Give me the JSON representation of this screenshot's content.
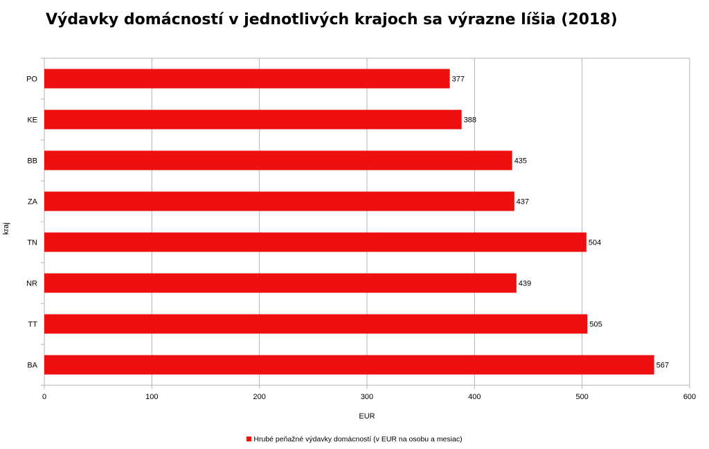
{
  "chart_data": {
    "type": "bar",
    "orientation": "horizontal",
    "title": "Výdavky domácností v jednotlivých krajoch sa výrazne líšia (2018)",
    "xlabel": "EUR",
    "ylabel": "kraj",
    "categories": [
      "PO",
      "KE",
      "BB",
      "ZA",
      "TN",
      "NR",
      "TT",
      "BA"
    ],
    "series": [
      {
        "name": "Hrubé peňažné výdavky domácností (v EUR na osobu a mesiac)",
        "values": [
          377,
          388,
          435,
          437,
          504,
          439,
          505,
          567
        ],
        "color": "#ee1010"
      }
    ],
    "xlim": [
      0,
      600
    ],
    "xticks": [
      "0",
      "100",
      "200",
      "300",
      "400",
      "500",
      "600"
    ],
    "grid": "vertical",
    "data_labels": true,
    "legend_position": "bottom"
  }
}
